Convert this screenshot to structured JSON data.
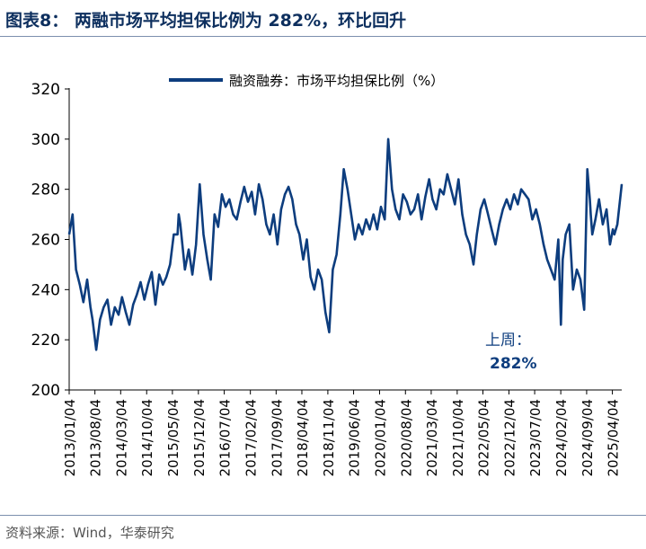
{
  "header": {
    "title": "图表8：  两融市场平均担保比例为 282%，环比回升"
  },
  "footer": {
    "source": "资料来源：Wind，华泰研究"
  },
  "colors": {
    "series": "#0d3d7e",
    "title": "#0d2f5e",
    "rule": "#7b8fae"
  },
  "chart_data": {
    "type": "line",
    "title": "",
    "xlabel": "",
    "ylabel": "",
    "ylim": [
      200,
      320
    ],
    "yticks": [
      200,
      220,
      240,
      260,
      280,
      300,
      320
    ],
    "xlim": [
      "2013-01-04",
      "2025-06-20"
    ],
    "xticks": [
      "2013/01/04",
      "2013/08/04",
      "2014/03/04",
      "2014/10/04",
      "2015/05/04",
      "2015/12/04",
      "2016/07/04",
      "2017/02/04",
      "2017/09/04",
      "2018/04/04",
      "2018/11/04",
      "2019/06/04",
      "2020/01/04",
      "2020/08/04",
      "2021/03/04",
      "2021/10/04",
      "2022/05/04",
      "2022/12/04",
      "2023/07/04",
      "2024/02/04",
      "2024/09/04",
      "2025/04/04"
    ],
    "grid": false,
    "legend": "top-center",
    "annotation": {
      "label": "上周：",
      "value": "282%"
    },
    "series": [
      {
        "name": "融资融券：市场平均担保比例（%）",
        "x": [
          "2013-01-04",
          "2013-02-01",
          "2013-03-01",
          "2013-04-01",
          "2013-05-01",
          "2013-06-01",
          "2013-06-28",
          "2013-07-15",
          "2013-08-15",
          "2013-09-15",
          "2013-10-15",
          "2013-11-15",
          "2013-12-15",
          "2014-01-15",
          "2014-02-15",
          "2014-03-15",
          "2014-04-15",
          "2014-05-15",
          "2014-06-15",
          "2014-07-15",
          "2014-08-15",
          "2014-09-15",
          "2014-10-15",
          "2014-11-15",
          "2014-12-15",
          "2015-01-15",
          "2015-02-15",
          "2015-03-15",
          "2015-04-15",
          "2015-05-15",
          "2015-06-15",
          "2015-06-25",
          "2015-07-08",
          "2015-08-15",
          "2015-09-15",
          "2015-10-15",
          "2015-11-15",
          "2015-12-15",
          "2016-01-15",
          "2016-02-15",
          "2016-03-15",
          "2016-04-15",
          "2016-05-15",
          "2016-06-15",
          "2016-07-15",
          "2016-08-15",
          "2016-09-15",
          "2016-10-15",
          "2016-11-15",
          "2016-12-15",
          "2017-01-15",
          "2017-02-15",
          "2017-03-15",
          "2017-04-15",
          "2017-05-15",
          "2017-06-15",
          "2017-07-15",
          "2017-08-15",
          "2017-09-15",
          "2017-10-15",
          "2017-11-15",
          "2017-12-15",
          "2018-01-15",
          "2018-02-15",
          "2018-03-15",
          "2018-04-15",
          "2018-05-15",
          "2018-06-15",
          "2018-07-15",
          "2018-08-15",
          "2018-09-15",
          "2018-10-15",
          "2018-11-15",
          "2018-12-15",
          "2019-01-15",
          "2019-02-15",
          "2019-03-15",
          "2019-04-15",
          "2019-05-15",
          "2019-06-15",
          "2019-07-15",
          "2019-08-15",
          "2019-09-15",
          "2019-10-15",
          "2019-11-15",
          "2019-12-15",
          "2020-01-15",
          "2020-02-15",
          "2020-03-15",
          "2020-04-15",
          "2020-05-15",
          "2020-06-15",
          "2020-07-15",
          "2020-08-15",
          "2020-09-15",
          "2020-10-15",
          "2020-11-15",
          "2020-12-15",
          "2021-01-15",
          "2021-02-15",
          "2021-03-15",
          "2021-04-15",
          "2021-05-15",
          "2021-06-15",
          "2021-07-15",
          "2021-08-15",
          "2021-09-15",
          "2021-10-15",
          "2021-11-15",
          "2021-12-15",
          "2022-01-15",
          "2022-02-15",
          "2022-03-15",
          "2022-04-15",
          "2022-05-15",
          "2022-06-15",
          "2022-07-15",
          "2022-08-15",
          "2022-09-15",
          "2022-10-15",
          "2022-11-15",
          "2022-12-15",
          "2023-01-15",
          "2023-02-15",
          "2023-03-15",
          "2023-04-15",
          "2023-05-15",
          "2023-06-15",
          "2023-07-15",
          "2023-08-15",
          "2023-09-15",
          "2023-10-15",
          "2023-11-15",
          "2023-12-15",
          "2024-01-15",
          "2024-02-05",
          "2024-02-20",
          "2024-03-15",
          "2024-04-15",
          "2024-05-15",
          "2024-06-15",
          "2024-07-15",
          "2024-08-15",
          "2024-09-10",
          "2024-09-30",
          "2024-10-08",
          "2024-10-20",
          "2024-11-15",
          "2024-12-15",
          "2025-01-15",
          "2025-02-15",
          "2025-03-15",
          "2025-04-08",
          "2025-04-20",
          "2025-05-15",
          "2025-06-20"
        ],
        "values": [
          262,
          270,
          248,
          242,
          235,
          244,
          233,
          228,
          216,
          228,
          233,
          236,
          226,
          233,
          230,
          237,
          231,
          226,
          234,
          238,
          243,
          236,
          242,
          247,
          234,
          246,
          242,
          245,
          250,
          262,
          262,
          270,
          266,
          248,
          256,
          246,
          258,
          282,
          262,
          252,
          244,
          270,
          265,
          278,
          273,
          276,
          270,
          268,
          275,
          281,
          275,
          279,
          270,
          282,
          276,
          266,
          262,
          270,
          258,
          272,
          278,
          281,
          276,
          266,
          262,
          252,
          260,
          245,
          240,
          248,
          244,
          231,
          223,
          248,
          254,
          270,
          288,
          280,
          270,
          260,
          266,
          262,
          268,
          264,
          270,
          264,
          273,
          268,
          300,
          280,
          272,
          268,
          278,
          275,
          270,
          272,
          278,
          268,
          277,
          284,
          276,
          272,
          280,
          278,
          286,
          280,
          274,
          284,
          270,
          262,
          258,
          250,
          262,
          272,
          276,
          270,
          264,
          258,
          266,
          272,
          276,
          272,
          278,
          274,
          280,
          278,
          276,
          268,
          272,
          266,
          258,
          252,
          248,
          244,
          260,
          226,
          252,
          262,
          266,
          240,
          248,
          244,
          232,
          288,
          276,
          270,
          262,
          268,
          276,
          266,
          272,
          258,
          264,
          262,
          266,
          282
        ]
      }
    ]
  }
}
